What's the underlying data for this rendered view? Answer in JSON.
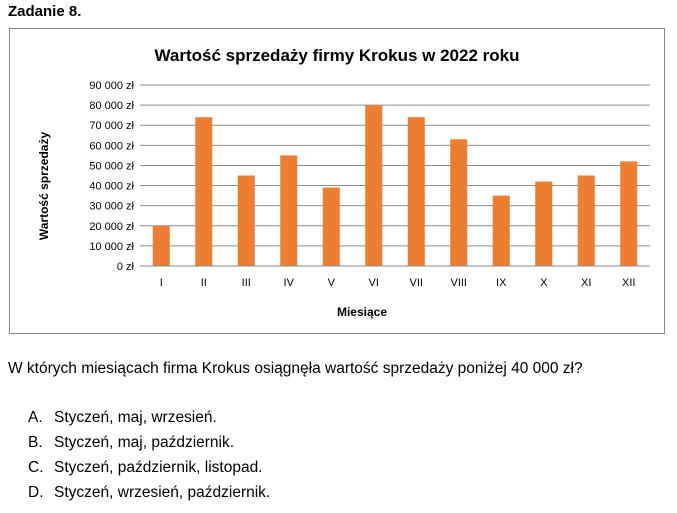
{
  "task": {
    "title": "Zadanie 8."
  },
  "chart_data": {
    "type": "bar",
    "title": "Wartość sprzedaży firmy Krokus w 2022 roku",
    "xlabel": "Miesiące",
    "ylabel": "Wartość sprzedaży",
    "categories": [
      "I",
      "II",
      "III",
      "IV",
      "V",
      "VI",
      "VII",
      "VIII",
      "IX",
      "X",
      "XI",
      "XII"
    ],
    "values": [
      20000,
      74000,
      45000,
      55000,
      39000,
      80000,
      74000,
      63000,
      35000,
      42000,
      45000,
      52000
    ],
    "ylim": [
      0,
      90000
    ],
    "yticks": [
      {
        "value": 0,
        "label": "0 zł"
      },
      {
        "value": 10000,
        "label": "10 000 zł"
      },
      {
        "value": 20000,
        "label": "20 000 zł"
      },
      {
        "value": 30000,
        "label": "30 000 zł"
      },
      {
        "value": 40000,
        "label": "40 000 zł"
      },
      {
        "value": 50000,
        "label": "50 000 zł"
      },
      {
        "value": 60000,
        "label": "60 000 zł"
      },
      {
        "value": 70000,
        "label": "70 000 zł"
      },
      {
        "value": 80000,
        "label": "80 000 zł"
      },
      {
        "value": 90000,
        "label": "90 000 zł"
      }
    ],
    "grid": true,
    "bar_color": "#ed7d31"
  },
  "question": "W których miesiącach firma Krokus osiągnęła wartość sprzedaży poniżej 40 000 zł?",
  "answers": [
    {
      "letter": "A.",
      "text": "Styczeń, maj, wrzesień."
    },
    {
      "letter": "B.",
      "text": "Styczeń, maj, październik."
    },
    {
      "letter": "C.",
      "text": "Styczeń, październik, listopad."
    },
    {
      "letter": "D.",
      "text": "Styczeń, wrzesień, październik."
    }
  ]
}
